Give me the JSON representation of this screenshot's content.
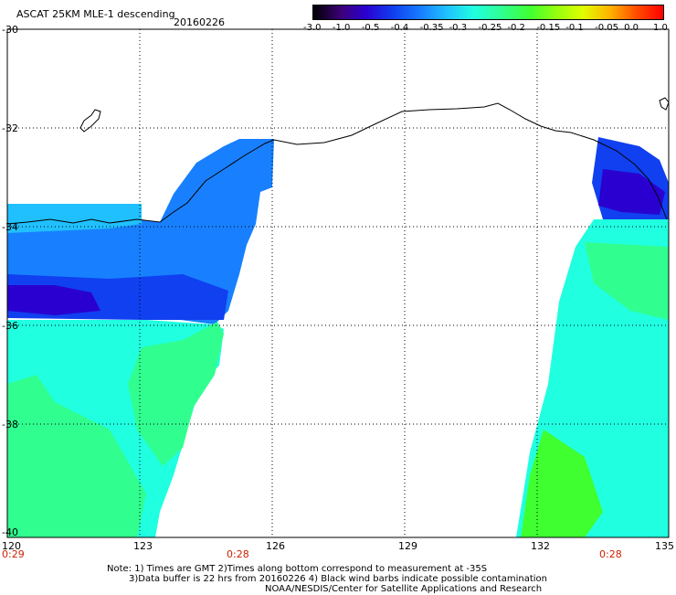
{
  "header": {
    "title": "ASCAT 25KM MLE-1 descending",
    "date": "20160226"
  },
  "colorbar": {
    "labels": [
      "-3.0",
      "-1.0",
      "-0.5",
      "-0.4",
      "-0.35",
      "-0.3",
      "-0.25",
      "-0.2",
      "-0.15",
      "-0.1",
      "-0.05",
      "0.0",
      "1.0"
    ],
    "colors": [
      "#000000",
      "#3c0078",
      "#2a00d0",
      "#1040f0",
      "#1880ff",
      "#20c0ff",
      "#20ffe0",
      "#30ff90",
      "#40ff30",
      "#90ff10",
      "#e0ff00",
      "#ffb000",
      "#ff5000",
      "#ff0000"
    ]
  },
  "axes": {
    "y_labels": [
      "-30",
      "-32",
      "-34",
      "-36",
      "-38",
      "-40"
    ],
    "x_labels": [
      "120",
      "123",
      "126",
      "129",
      "132",
      "135"
    ]
  },
  "times": {
    "left": "0:29",
    "mid": "0:28",
    "right": "0:28"
  },
  "notes": {
    "line1": "Note: 1) Times are GMT 2)Times along bottom correspond to measurement at -35S",
    "line2": "3)Data buffer is 22 hrs from 20160226 4) Black wind barbs indicate possible contamination",
    "line3": "NOAA/NESDIS/Center for Satellite Applications and Research"
  },
  "swaths": {
    "left": {
      "color_indices": [
        4,
        3,
        2,
        5,
        6,
        7
      ]
    },
    "right": {
      "color_indices": [
        3,
        2,
        6,
        7,
        8
      ]
    }
  }
}
